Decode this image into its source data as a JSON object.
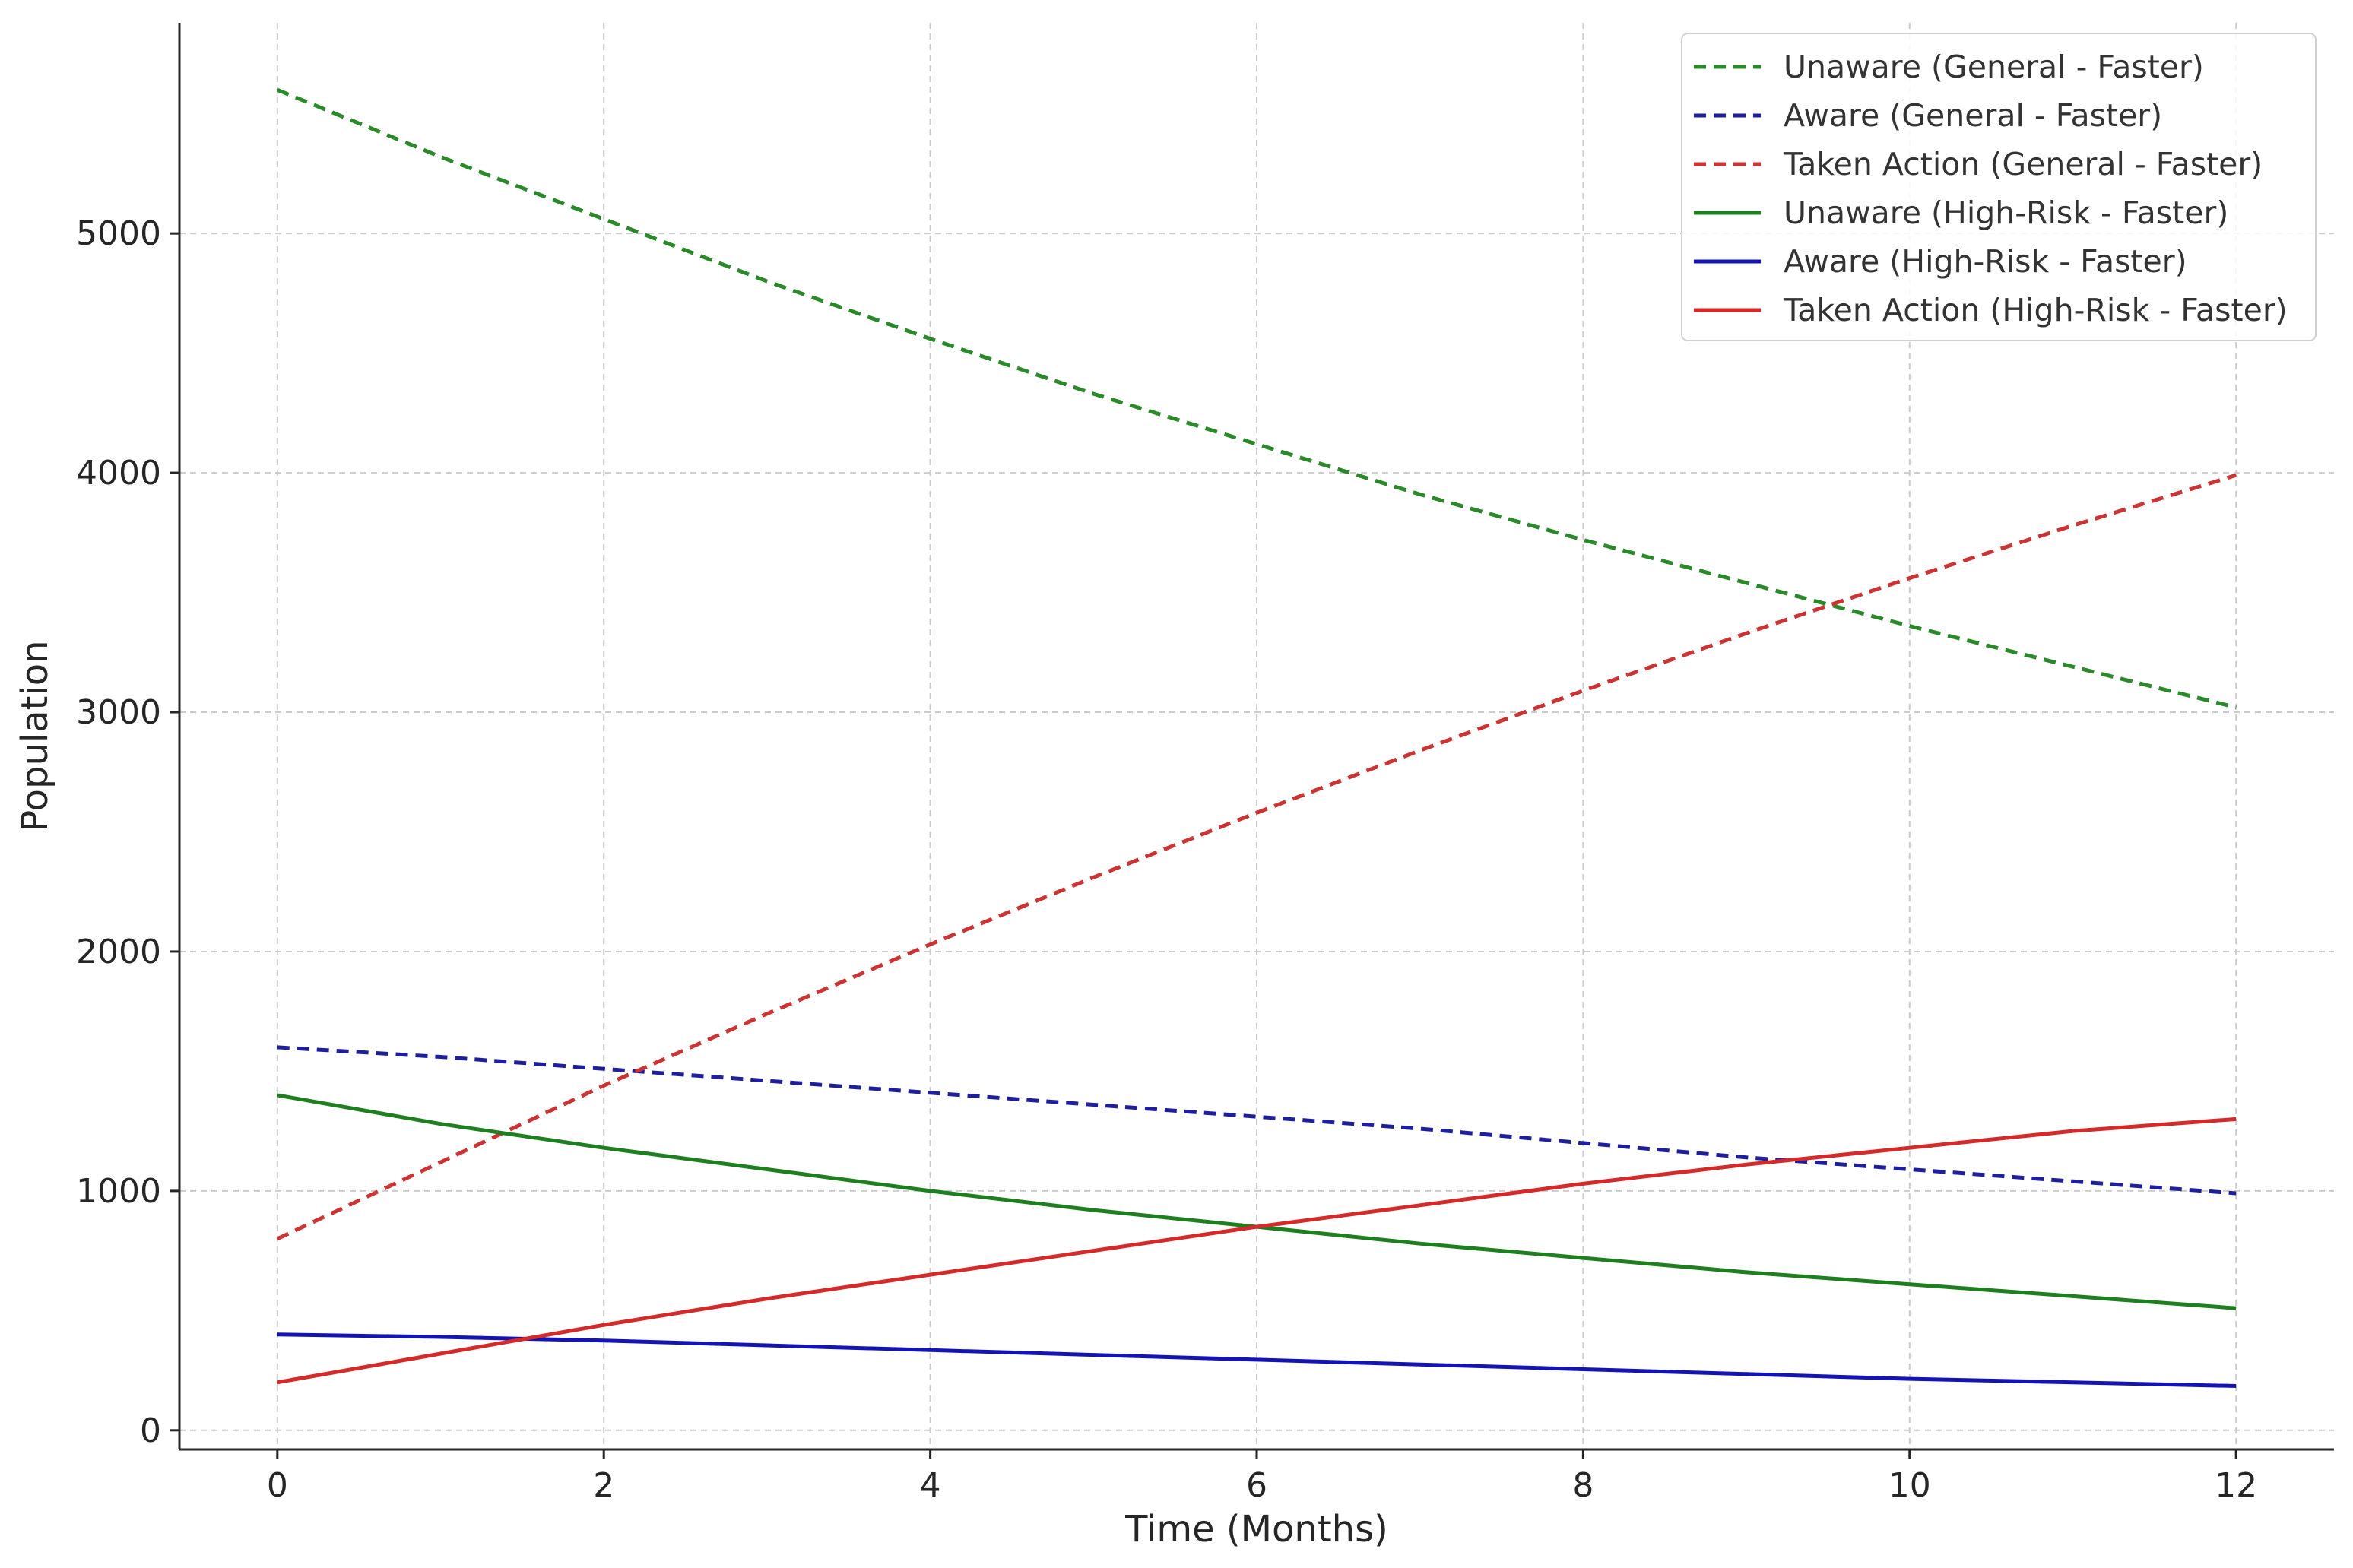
{
  "chart_data": {
    "type": "line",
    "title": "",
    "xlabel": "Time (Months)",
    "ylabel": "Population",
    "xlim": [
      -0.6,
      12.6
    ],
    "ylim": [
      -80,
      5880
    ],
    "x_ticks": [
      0,
      2,
      4,
      6,
      8,
      10,
      12
    ],
    "y_ticks": [
      0,
      1000,
      2000,
      3000,
      4000,
      5000
    ],
    "grid": true,
    "legend_position": "top-right",
    "x": [
      0,
      1,
      2,
      3,
      4,
      5,
      6,
      7,
      8,
      9,
      10,
      11,
      12
    ],
    "series": [
      {
        "name": "Unaware (General - Faster)",
        "color": "#2a8a2a",
        "style": "dashed",
        "values": [
          5600,
          5320,
          5060,
          4800,
          4560,
          4330,
          4120,
          3910,
          3720,
          3540,
          3360,
          3190,
          3020
        ]
      },
      {
        "name": "Aware (General - Faster)",
        "color": "#1f1f9e",
        "style": "dashed",
        "values": [
          1600,
          1560,
          1510,
          1460,
          1410,
          1360,
          1310,
          1260,
          1200,
          1140,
          1090,
          1040,
          990
        ]
      },
      {
        "name": "Taken Action (General - Faster)",
        "color": "#cc3333",
        "style": "dashed",
        "values": [
          800,
          1120,
          1440,
          1740,
          2030,
          2310,
          2580,
          2840,
          3090,
          3330,
          3560,
          3780,
          3990
        ]
      },
      {
        "name": "Unaware (High-Risk - Faster)",
        "color": "#1e7f1e",
        "style": "solid",
        "values": [
          1400,
          1280,
          1180,
          1090,
          1000,
          920,
          850,
          780,
          720,
          660,
          610,
          560,
          510
        ]
      },
      {
        "name": "Aware (High-Risk - Faster)",
        "color": "#1414b4",
        "style": "solid",
        "values": [
          400,
          390,
          375,
          355,
          335,
          315,
          295,
          275,
          255,
          235,
          215,
          200,
          185
        ]
      },
      {
        "name": "Taken Action (High-Risk - Faster)",
        "color": "#d42a2a",
        "style": "solid",
        "values": [
          200,
          320,
          440,
          550,
          650,
          750,
          850,
          940,
          1030,
          1110,
          1180,
          1250,
          1300
        ]
      }
    ]
  }
}
